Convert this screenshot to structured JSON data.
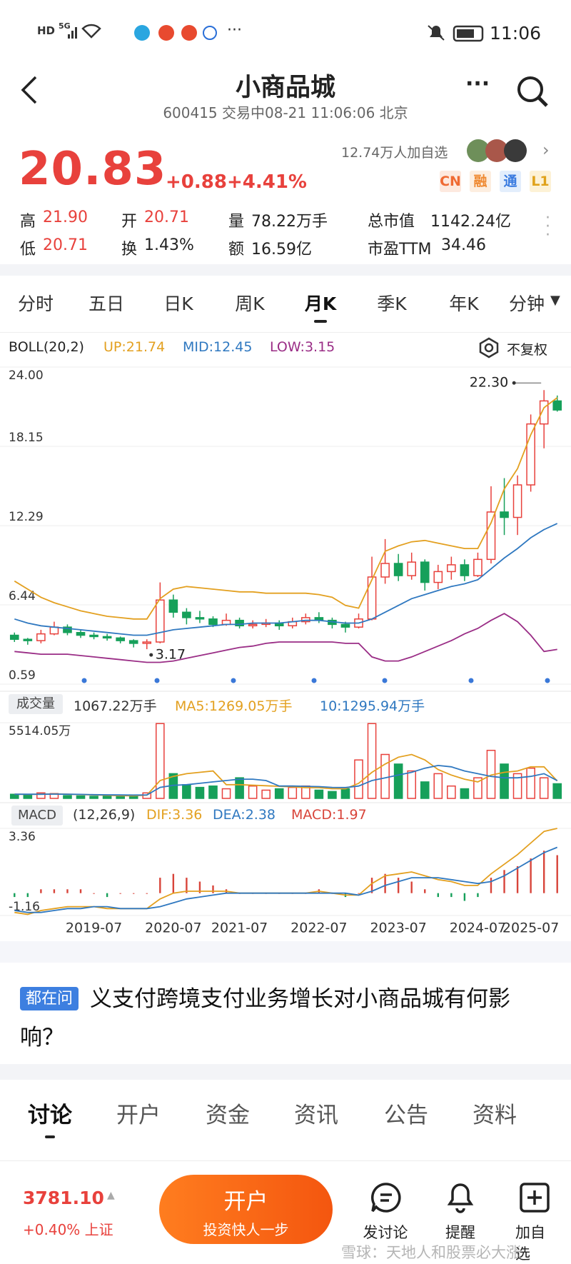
{
  "status_bar": {
    "icons": [
      "HD",
      "5G"
    ],
    "time": "11:06"
  },
  "header": {
    "title": "小商品城",
    "subtitle": "600415 交易中08-21 11:06:06 北京"
  },
  "quote": {
    "price": "20.83",
    "change": "+0.88",
    "change_pct": "+4.41%",
    "followers": "12.74万人加自选",
    "badges": [
      "CN",
      "融",
      "通",
      "L1"
    ],
    "stats": [
      {
        "label": "高",
        "value": "21.90"
      },
      {
        "label": "开",
        "value": "20.71"
      },
      {
        "label": "量",
        "value": "78.22万手"
      },
      {
        "label": "总市值",
        "value": "1142.24亿"
      },
      {
        "label": "低",
        "value": "20.71"
      },
      {
        "label": "换",
        "value": "1.43%"
      },
      {
        "label": "额",
        "value": "16.59亿"
      },
      {
        "label": "市盈TTM",
        "value": "34.46"
      }
    ]
  },
  "period_tabs": [
    "分时",
    "五日",
    "日K",
    "周K",
    "月K",
    "季K",
    "年K",
    "分钟"
  ],
  "adjust": "不复权",
  "chart_data": [
    {
      "type": "candlestick",
      "title": "BOLL(20,2)",
      "ylim": [
        0.59,
        24
      ],
      "yticks": [
        {
          "value": 24,
          "label": "24.00"
        },
        18.15,
        12.29,
        6.44,
        0.59
      ],
      "grid": true,
      "up_color": "#e8413c",
      "down_color": "#16a05a",
      "open": [
        4.2,
        3.9,
        3.8,
        4.3,
        4.8,
        4.4,
        4.2,
        4.1,
        4.0,
        3.8,
        3.6,
        3.7,
        6.8,
        5.9,
        5.5,
        5.4,
        5.0,
        5.3,
        4.9,
        5.0,
        5.1,
        4.9,
        5.2,
        5.5,
        5.3,
        5.0,
        4.8,
        5.4,
        8.5,
        9.5,
        8.6,
        9.6,
        8.1,
        8.9,
        9.4,
        8.6,
        9.8,
        13.3,
        12.9,
        15.3,
        19.8,
        21.5
      ],
      "close": [
        3.9,
        3.8,
        4.3,
        4.8,
        4.4,
        4.2,
        4.1,
        4.0,
        3.8,
        3.6,
        3.7,
        6.8,
        5.9,
        5.5,
        5.4,
        5.0,
        5.3,
        4.9,
        5.0,
        5.1,
        4.9,
        5.2,
        5.5,
        5.3,
        5.0,
        4.8,
        5.4,
        8.5,
        9.5,
        8.6,
        9.6,
        8.1,
        8.9,
        9.4,
        8.6,
        9.8,
        13.3,
        12.9,
        15.3,
        19.8,
        21.5,
        20.83
      ],
      "high": [
        4.4,
        4.0,
        4.6,
        5.2,
        5.0,
        4.6,
        4.4,
        4.3,
        4.1,
        3.9,
        3.9,
        8.1,
        7.2,
        6.2,
        6.0,
        5.6,
        5.8,
        5.5,
        5.3,
        5.4,
        5.3,
        5.5,
        5.8,
        5.9,
        5.5,
        5.2,
        5.8,
        10.0,
        11.3,
        10.2,
        10.3,
        9.8,
        9.4,
        10.0,
        9.8,
        10.3,
        15.2,
        15.8,
        16.0,
        20.5,
        22.3,
        21.9
      ],
      "low": [
        3.7,
        3.5,
        3.6,
        4.2,
        4.2,
        4.0,
        3.9,
        3.8,
        3.6,
        3.3,
        3.17,
        3.6,
        5.5,
        5.0,
        5.1,
        4.8,
        4.9,
        4.7,
        4.7,
        4.8,
        4.6,
        4.7,
        5.0,
        5.1,
        4.7,
        4.4,
        4.7,
        5.3,
        8.0,
        8.2,
        8.3,
        7.5,
        7.6,
        8.3,
        8.2,
        8.5,
        9.5,
        11.6,
        11.6,
        14.8,
        18.0,
        20.71
      ],
      "series": [
        {
          "name": "UP:21.74",
          "color": "#e3a020",
          "values": [
            8.2,
            7.6,
            7.0,
            6.6,
            6.3,
            6.0,
            5.8,
            5.6,
            5.5,
            5.4,
            5.4,
            6.9,
            7.6,
            7.8,
            7.7,
            7.6,
            7.5,
            7.4,
            7.4,
            7.3,
            7.3,
            7.3,
            7.3,
            7.2,
            7.0,
            6.4,
            6.2,
            8.3,
            10.4,
            10.8,
            11.1,
            11.2,
            11.0,
            10.8,
            10.6,
            10.6,
            12.5,
            15.0,
            16.5,
            19.0,
            21.0,
            21.74
          ]
        },
        {
          "name": "MID:12.45",
          "color": "#2f78c0",
          "values": [
            5.4,
            5.1,
            4.9,
            4.8,
            4.7,
            4.6,
            4.5,
            4.4,
            4.3,
            4.2,
            4.2,
            4.4,
            4.6,
            4.7,
            4.8,
            4.9,
            5.0,
            5.0,
            5.1,
            5.1,
            5.1,
            5.2,
            5.3,
            5.3,
            5.2,
            5.1,
            5.1,
            5.4,
            5.9,
            6.4,
            6.9,
            7.2,
            7.5,
            7.8,
            8.0,
            8.3,
            9.1,
            9.9,
            10.6,
            11.4,
            12.0,
            12.45
          ]
        },
        {
          "name": "LOW:3.15",
          "color": "#9a2d86",
          "values": [
            3.0,
            2.9,
            2.8,
            2.8,
            2.8,
            2.7,
            2.6,
            2.5,
            2.4,
            2.3,
            2.2,
            2.2,
            2.3,
            2.5,
            2.7,
            2.9,
            3.1,
            3.3,
            3.4,
            3.6,
            3.7,
            3.7,
            3.7,
            3.7,
            3.7,
            3.6,
            3.6,
            2.6,
            2.3,
            2.3,
            2.6,
            3.0,
            3.4,
            3.8,
            4.3,
            4.7,
            5.3,
            5.8,
            5.2,
            4.2,
            3.0,
            3.15
          ]
        }
      ],
      "annotations": [
        {
          "label": "22.30",
          "value": 22.3
        },
        {
          "label": "3.17",
          "value": 3.17
        }
      ]
    },
    {
      "type": "bar",
      "title": "成交量",
      "subtitle": "1067.22万手",
      "ylim": [
        0,
        5514.05
      ],
      "yticks": [
        {
          "value": 5514.05,
          "label": "5514.05万"
        }
      ],
      "values": [
        300,
        250,
        400,
        350,
        200,
        180,
        150,
        160,
        200,
        250,
        400,
        5450,
        1800,
        1000,
        800,
        900,
        700,
        1500,
        900,
        600,
        700,
        800,
        900,
        600,
        500,
        700,
        2800,
        5450,
        3200,
        2500,
        2000,
        1200,
        1800,
        900,
        700,
        1500,
        3500,
        2500,
        1800,
        2200,
        1500,
        1067.22
      ],
      "series": [
        {
          "name": "MA5:1269.05万手",
          "color": "#e3a020",
          "values": [
            300,
            290,
            300,
            320,
            300,
            280,
            250,
            230,
            200,
            190,
            240,
            1300,
            1600,
            1800,
            1900,
            2000,
            1000,
            1000,
            960,
            920,
            880,
            840,
            780,
            780,
            700,
            700,
            1100,
            1900,
            2500,
            3000,
            3200,
            2800,
            2100,
            1700,
            1400,
            1200,
            1700,
            1900,
            2000,
            2300,
            2300,
            1269.05
          ]
        },
        {
          "name": "10:1295.94万手",
          "color": "#2f78c0",
          "values": [
            300,
            300,
            300,
            310,
            300,
            290,
            270,
            260,
            250,
            240,
            250,
            800,
            950,
            1000,
            1100,
            1200,
            1300,
            1400,
            1400,
            1300,
            900,
            900,
            880,
            860,
            800,
            790,
            900,
            1300,
            1500,
            1700,
            1900,
            2200,
            2400,
            2300,
            2000,
            1800,
            1600,
            1500,
            1500,
            1600,
            1800,
            1295.94
          ]
        }
      ]
    },
    {
      "type": "macd",
      "title": "MACD",
      "subtitle": "(12,26,9)",
      "ylim": [
        -1.16,
        3.36
      ],
      "yticks": [
        3.36,
        -1.16
      ],
      "categories": [
        null,
        null,
        null,
        null,
        null,
        null,
        "2019-07",
        null,
        null,
        null,
        null,
        null,
        "2020-07",
        null,
        null,
        null,
        null,
        "2021-07",
        null,
        null,
        null,
        null,
        null,
        "2022-07",
        null,
        null,
        null,
        null,
        null,
        "2023-07",
        null,
        null,
        null,
        null,
        null,
        "2024-07",
        null,
        null,
        null,
        "2025-07",
        null,
        null
      ],
      "series": [
        {
          "name": "DIF:3.36",
          "color": "#e3a020",
          "values": [
            -1.0,
            -1.1,
            -0.9,
            -0.8,
            -0.7,
            -0.7,
            -0.7,
            -0.8,
            -0.8,
            -0.8,
            -0.8,
            -0.3,
            0.0,
            0.1,
            0.1,
            0.1,
            0.1,
            0.0,
            0.0,
            0.0,
            0.0,
            0.0,
            0.0,
            0.1,
            0.0,
            -0.1,
            -0.1,
            0.5,
            0.9,
            1.0,
            1.1,
            0.9,
            0.7,
            0.6,
            0.4,
            0.4,
            1.0,
            1.5,
            2.0,
            2.6,
            3.2,
            3.36
          ]
        },
        {
          "name": "DEA:2.38",
          "color": "#2f78c0",
          "values": [
            -0.9,
            -1.0,
            -1.0,
            -0.9,
            -0.8,
            -0.8,
            -0.7,
            -0.7,
            -0.8,
            -0.8,
            -0.8,
            -0.7,
            -0.5,
            -0.3,
            -0.2,
            -0.1,
            0.0,
            0.0,
            0.0,
            0.0,
            0.0,
            0.0,
            0.0,
            0.0,
            0.0,
            0.0,
            -0.1,
            0.1,
            0.4,
            0.6,
            0.8,
            0.8,
            0.8,
            0.7,
            0.6,
            0.5,
            0.6,
            0.9,
            1.3,
            1.7,
            2.1,
            2.38
          ]
        },
        {
          "name": "MACD:1.97",
          "color": "#d8443a",
          "values": [
            -0.2,
            -0.2,
            0.2,
            0.2,
            0.2,
            0.2,
            0,
            -0.2,
            0,
            0,
            0,
            0.8,
            1.0,
            0.8,
            0.6,
            0.4,
            0.2,
            0,
            0,
            0,
            0,
            0,
            0,
            0.2,
            0,
            -0.2,
            0,
            0.8,
            1.0,
            0.8,
            0.6,
            0.2,
            -0.2,
            -0.2,
            -0.4,
            -0.2,
            0.8,
            1.2,
            1.4,
            1.8,
            2.2,
            1.97
          ]
        }
      ]
    }
  ],
  "question": {
    "tag": "都在问",
    "text": "义支付跨境支付业务增长对小商品城有何影响？"
  },
  "content_tabs": [
    "讨论",
    "开户",
    "资金",
    "资讯",
    "公告",
    "资料"
  ],
  "bottom_bar": {
    "index_value": "3781.10",
    "index_change": "+0.40% 上证",
    "button": "开户",
    "button_sub": "投资快人一步",
    "actions": [
      "发讨论",
      "提醒",
      "加自选"
    ],
    "watermark": "雪球：天地人和股票必大涨"
  }
}
